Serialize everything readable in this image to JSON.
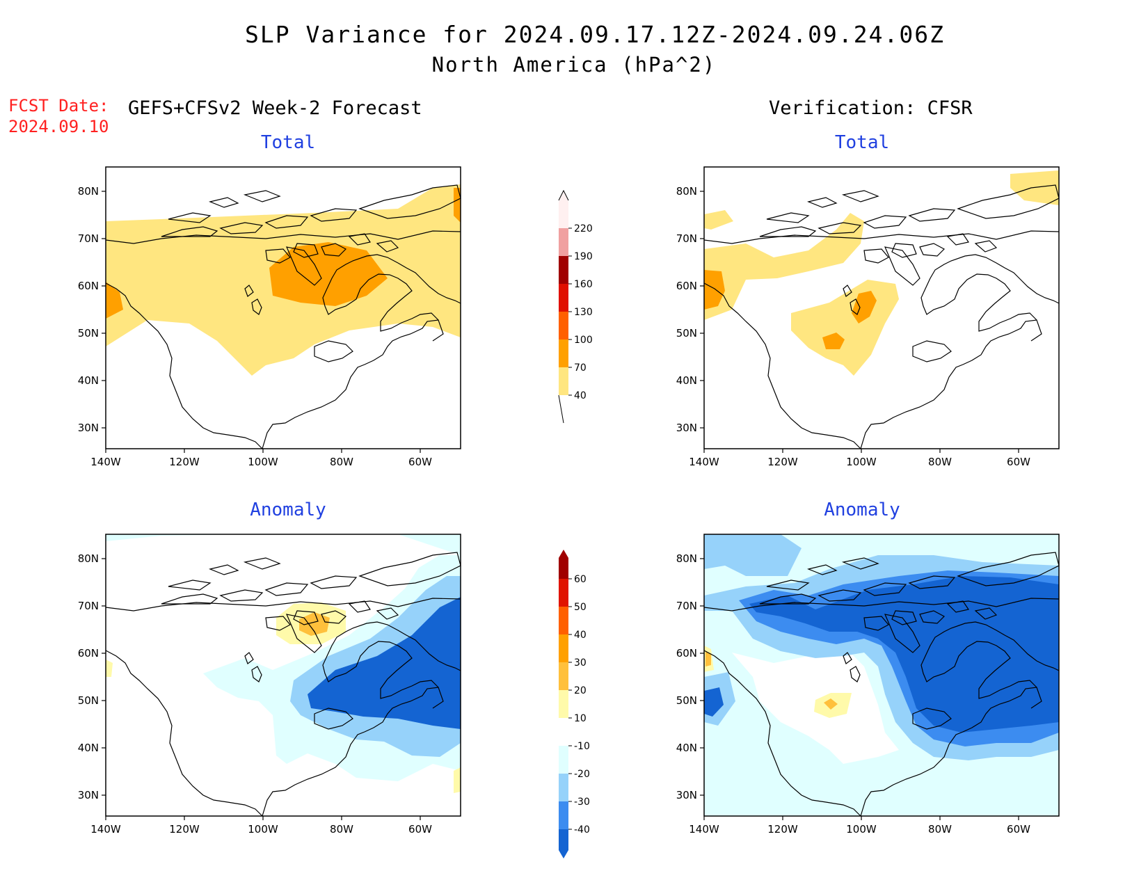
{
  "title": {
    "line1": "SLP Variance for 2024.09.17.12Z-2024.09.24.06Z",
    "line2": "North America (hPa^2)"
  },
  "fcst_date": {
    "label": "FCST Date:",
    "value": "2024.09.10"
  },
  "headers": {
    "left": "GEFS+CFSv2 Week-2 Forecast",
    "right": "Verification: CFSR"
  },
  "panels": {
    "top_left": "Total",
    "top_right": "Total",
    "bottom_left": "Anomaly",
    "bottom_right": "Anomaly"
  },
  "axes": {
    "lat_labels": [
      "80N",
      "70N",
      "60N",
      "50N",
      "40N",
      "30N"
    ],
    "lon_labels": [
      "140W",
      "120W",
      "100W",
      "80W",
      "60W"
    ]
  },
  "colorbars": {
    "total": {
      "levels": [
        "40",
        "70",
        "100",
        "130",
        "160",
        "190",
        "220"
      ],
      "colors": [
        "#ffe680",
        "#ffa000",
        "#ff6000",
        "#e01000",
        "#a00000",
        "#f0a0a0",
        "#fff0f0"
      ]
    },
    "anomaly": {
      "levels": [
        "-40",
        "-30",
        "-20",
        "-10",
        "10",
        "20",
        "30",
        "40",
        "50",
        "60"
      ],
      "colors": [
        "#1464d2",
        "#3c8cf0",
        "#96d2fa",
        "#e0ffff",
        "#ffffff",
        "#fffaaa",
        "#ffc03c",
        "#ffa000",
        "#ff6000",
        "#e01400",
        "#a00000"
      ]
    }
  }
}
